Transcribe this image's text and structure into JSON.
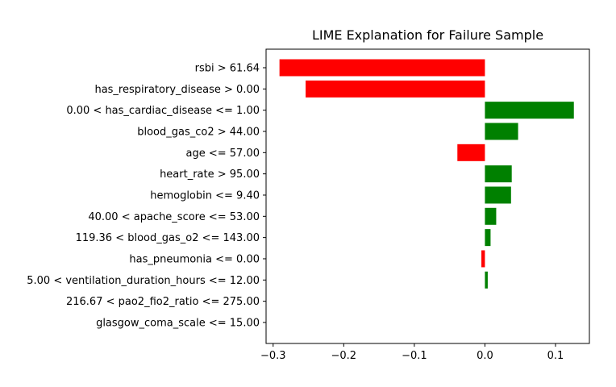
{
  "chart_data": {
    "type": "bar",
    "orientation": "horizontal",
    "title": "LIME Explanation for Failure Sample",
    "xlabel": "",
    "ylabel": "",
    "xlim": [
      -0.31,
      0.148
    ],
    "xticks": [
      -0.3,
      -0.2,
      -0.1,
      0.0,
      0.1
    ],
    "xtick_labels": [
      "−0.3",
      "−0.2",
      "−0.1",
      "0.0",
      "0.1"
    ],
    "grid": false,
    "legend": "none",
    "positive_color": "#008000",
    "negative_color": "#ff0000",
    "categories": [
      "rsbi > 61.64",
      "has_respiratory_disease > 0.00",
      "0.00 < has_cardiac_disease <= 1.00",
      "blood_gas_co2 > 44.00",
      "age <= 57.00",
      "heart_rate > 95.00",
      "hemoglobin <= 9.40",
      "40.00 < apache_score <= 53.00",
      "119.36 < blood_gas_o2 <= 143.00",
      "has_pneumonia <= 0.00",
      "5.00 < ventilation_duration_hours <= 12.00",
      "216.67 < pao2_fio2_ratio <= 275.00",
      "glasgow_coma_scale <= 15.00"
    ],
    "values": [
      -0.291,
      -0.254,
      0.126,
      0.047,
      -0.039,
      0.038,
      0.037,
      0.016,
      0.008,
      -0.005,
      0.004,
      0.0,
      0.0
    ]
  }
}
